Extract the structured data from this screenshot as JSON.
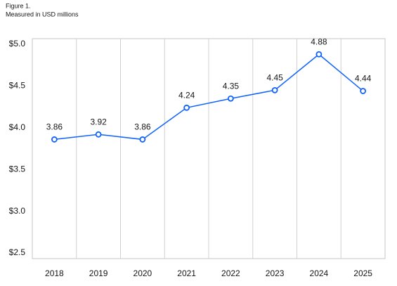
{
  "chart_data": {
    "type": "line",
    "title": "Figure 1.",
    "subtitle": "Measured in USD millions",
    "categories": [
      "2018",
      "2019",
      "2020",
      "2021",
      "2022",
      "2023",
      "2024",
      "2025"
    ],
    "values": [
      3.86,
      3.92,
      3.86,
      4.24,
      4.35,
      4.45,
      4.88,
      4.44
    ],
    "color": "#0f62fe",
    "ylim": [
      2.5,
      5.0
    ],
    "yticks": [
      {
        "value": 2.5,
        "label": "$2.5"
      },
      {
        "value": 3.0,
        "label": "$3.0"
      },
      {
        "value": 3.5,
        "label": "$3.5"
      },
      {
        "value": 4.0,
        "label": "$4.0"
      },
      {
        "value": 4.5,
        "label": "$4.5"
      },
      {
        "value": 5.0,
        "label": "$5.0"
      }
    ]
  }
}
